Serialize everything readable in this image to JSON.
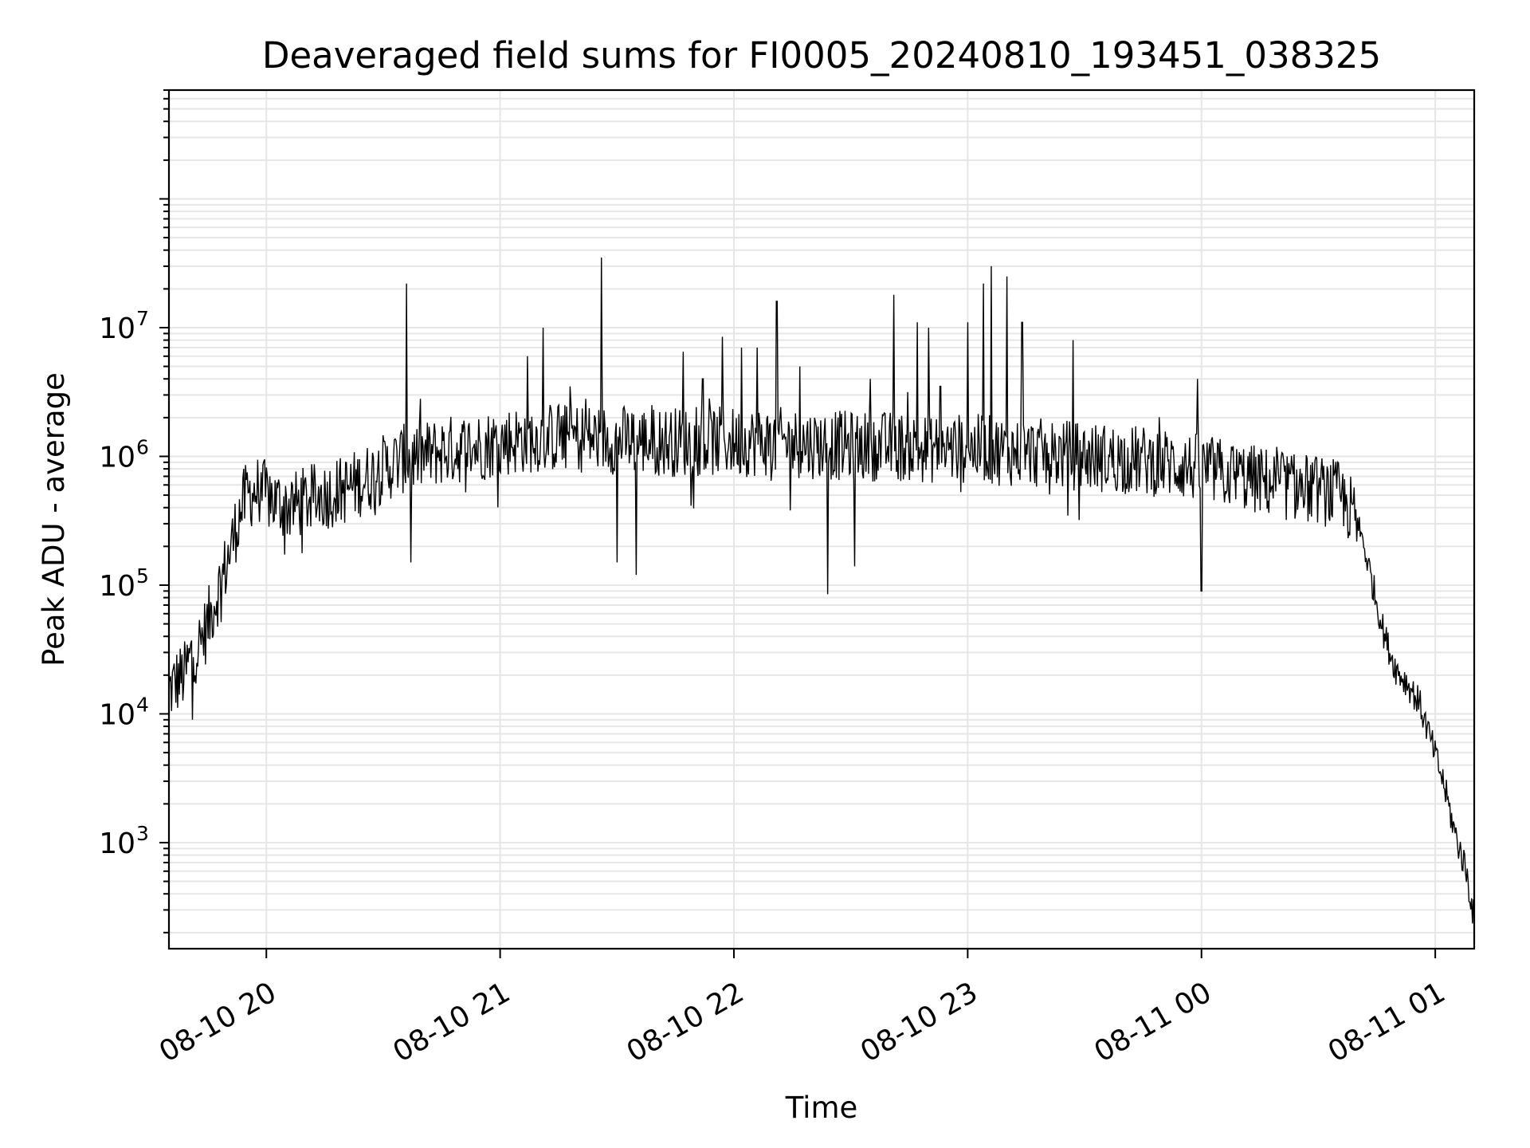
{
  "chart_data": {
    "type": "line",
    "title": "Deaveraged field sums for FI0005_20240810_193451_038325",
    "xlabel": "Time",
    "ylabel": "Peak ADU - average",
    "yscale": "log",
    "ylim": [
      150,
      700000000
    ],
    "xlim": [
      "2024-08-10 19:35",
      "2024-08-11 01:10"
    ],
    "x_ticks": [
      {
        "time": "2024-08-10 20:00",
        "label": "08-10 20"
      },
      {
        "time": "2024-08-10 21:00",
        "label": "08-10 21"
      },
      {
        "time": "2024-08-10 22:00",
        "label": "08-10 22"
      },
      {
        "time": "2024-08-10 23:00",
        "label": "08-10 23"
      },
      {
        "time": "2024-08-11 00:00",
        "label": "08-11 00"
      },
      {
        "time": "2024-08-11 01:00",
        "label": "08-11 01"
      }
    ],
    "y_ticks": [
      {
        "value": 1000,
        "base": "10",
        "exp": "3"
      },
      {
        "value": 10000,
        "base": "10",
        "exp": "4"
      },
      {
        "value": 100000,
        "base": "10",
        "exp": "5"
      },
      {
        "value": 1000000,
        "base": "10",
        "exp": "6"
      },
      {
        "value": 10000000,
        "base": "10",
        "exp": "7"
      }
    ],
    "grid": true,
    "line_color": "#000000",
    "grid_color": "#e6e6e6",
    "series": [
      {
        "time": [
          "2024-08-10 19:35",
          "2024-08-10 19:37",
          "2024-08-10 19:39",
          "2024-08-10 19:41",
          "2024-08-10 19:43",
          "2024-08-10 19:45",
          "2024-08-10 19:47",
          "2024-08-10 19:49",
          "2024-08-10 19:51",
          "2024-08-10 19:53",
          "2024-08-10 19:55",
          "2024-08-10 19:58",
          "2024-08-10 20:02",
          "2024-08-10 20:06",
          "2024-08-10 20:10",
          "2024-08-10 20:15",
          "2024-08-10 20:20",
          "2024-08-10 20:25",
          "2024-08-10 20:30",
          "2024-08-10 20:35",
          "2024-08-10 20:40",
          "2024-08-10 20:45",
          "2024-08-10 20:50",
          "2024-08-10 20:55",
          "2024-08-10 21:00",
          "2024-08-10 21:05",
          "2024-08-10 21:10",
          "2024-08-10 21:15",
          "2024-08-10 21:20",
          "2024-08-10 21:30",
          "2024-08-10 21:40",
          "2024-08-10 21:50",
          "2024-08-10 22:00",
          "2024-08-10 22:10",
          "2024-08-10 22:20",
          "2024-08-10 22:30",
          "2024-08-10 22:40",
          "2024-08-10 22:50",
          "2024-08-10 23:00",
          "2024-08-10 23:10",
          "2024-08-10 23:20",
          "2024-08-10 23:30",
          "2024-08-10 23:40",
          "2024-08-10 23:50",
          "2024-08-11 00:00",
          "2024-08-11 00:10",
          "2024-08-11 00:20",
          "2024-08-11 00:30",
          "2024-08-11 00:35",
          "2024-08-11 00:38",
          "2024-08-11 00:41",
          "2024-08-11 00:44",
          "2024-08-11 00:47",
          "2024-08-11 00:50",
          "2024-08-11 00:53",
          "2024-08-11 00:56",
          "2024-08-11 00:59",
          "2024-08-11 01:02",
          "2024-08-11 01:05",
          "2024-08-11 01:08",
          "2024-08-11 01:10"
        ],
        "values": [
          15000,
          18000,
          20000,
          30000,
          35000,
          50000,
          80000,
          120000,
          200000,
          350000,
          500000,
          550000,
          450000,
          400000,
          450000,
          500000,
          550000,
          650000,
          800000,
          950000,
          1000000,
          1100000,
          1150000,
          1200000,
          1300000,
          1350000,
          1400000,
          1400000,
          1400000,
          1350000,
          1300000,
          1300000,
          1300000,
          1300000,
          1250000,
          1200000,
          1200000,
          1150000,
          1150000,
          1100000,
          1050000,
          1000000,
          950000,
          900000,
          800000,
          700000,
          600000,
          550000,
          500000,
          400000,
          250000,
          100000,
          40000,
          22000,
          17000,
          12000,
          6000,
          3000,
          1200,
          600,
          250
        ]
      }
    ],
    "spikes": [
      {
        "time": "2024-08-10 20:36",
        "value": 22000000
      },
      {
        "time": "2024-08-10 21:07",
        "value": 6000000
      },
      {
        "time": "2024-08-10 21:11",
        "value": 10000000
      },
      {
        "time": "2024-08-10 21:15",
        "value": 2500000
      },
      {
        "time": "2024-08-10 21:18",
        "value": 3500000
      },
      {
        "time": "2024-08-10 21:22",
        "value": 2800000
      },
      {
        "time": "2024-08-10 21:26",
        "value": 35000000
      },
      {
        "time": "2024-08-10 21:39",
        "value": 2500000
      },
      {
        "time": "2024-08-10 21:47",
        "value": 6500000
      },
      {
        "time": "2024-08-10 21:52",
        "value": 4000000
      },
      {
        "time": "2024-08-10 21:57",
        "value": 8500000
      },
      {
        "time": "2024-08-10 22:02",
        "value": 7000000
      },
      {
        "time": "2024-08-10 22:06",
        "value": 7000000
      },
      {
        "time": "2024-08-10 22:11",
        "value": 16000000
      },
      {
        "time": "2024-08-10 22:17",
        "value": 5000000
      },
      {
        "time": "2024-08-10 22:35",
        "value": 4000000
      },
      {
        "time": "2024-08-10 22:41",
        "value": 18000000
      },
      {
        "time": "2024-08-10 22:47",
        "value": 11000000
      },
      {
        "time": "2024-08-10 22:50",
        "value": 10000000
      },
      {
        "time": "2024-08-10 22:53",
        "value": 3500000
      },
      {
        "time": "2024-08-10 23:00",
        "value": 11000000
      },
      {
        "time": "2024-08-10 23:04",
        "value": 22000000
      },
      {
        "time": "2024-08-10 23:06",
        "value": 30000000
      },
      {
        "time": "2024-08-10 23:10",
        "value": 25000000
      },
      {
        "time": "2024-08-10 23:14",
        "value": 11000000
      },
      {
        "time": "2024-08-10 23:27",
        "value": 8000000
      },
      {
        "time": "2024-08-10 23:59",
        "value": 4000000
      }
    ],
    "dips": [
      {
        "time": "2024-08-10 19:41",
        "value": 9000
      },
      {
        "time": "2024-08-10 20:37",
        "value": 150000
      },
      {
        "time": "2024-08-10 21:30",
        "value": 150000
      },
      {
        "time": "2024-08-10 21:35",
        "value": 120000
      },
      {
        "time": "2024-08-10 22:24",
        "value": 85000
      },
      {
        "time": "2024-08-10 22:31",
        "value": 140000
      },
      {
        "time": "2024-08-11 00:00",
        "value": 90000
      }
    ]
  }
}
